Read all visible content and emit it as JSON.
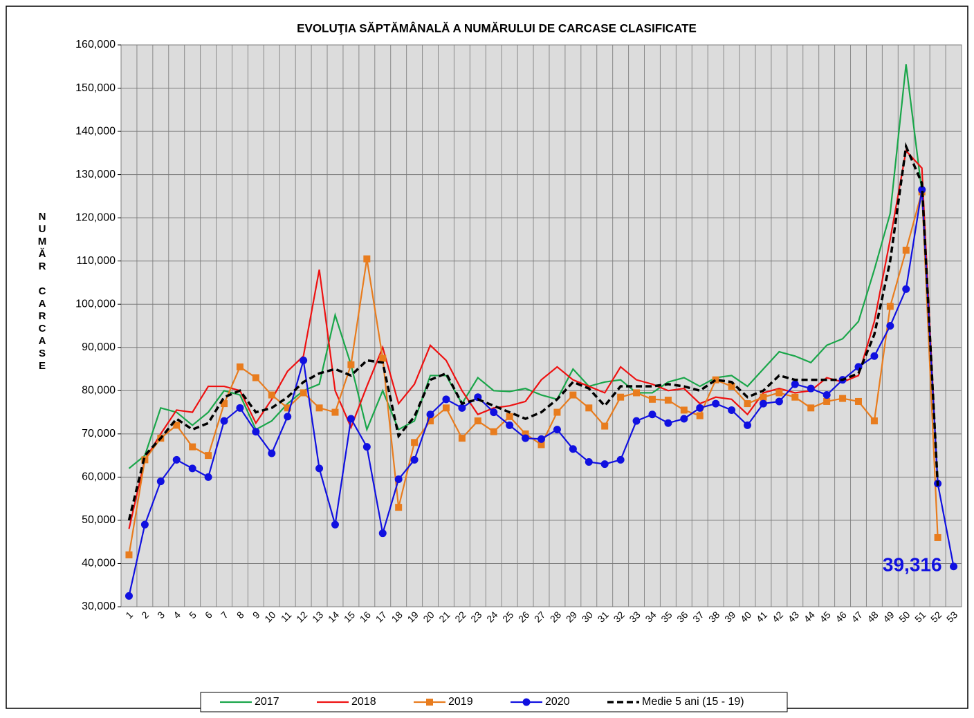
{
  "chart_data": {
    "type": "line",
    "title": "EVOLUŢIA SĂPTĂMÂNALĂ A NUMĂRULUI DE CARCASE  CLASIFICATE",
    "y_label": "NUMĂR  CARCASE",
    "categories": [
      "1",
      "2",
      "3",
      "4",
      "5",
      "6",
      "7",
      "8",
      "9",
      "10",
      "11",
      "12",
      "13",
      "14",
      "15",
      "16",
      "17",
      "18",
      "19",
      "20",
      "21",
      "22",
      "23",
      "24",
      "25",
      "26",
      "27",
      "28",
      "29",
      "30",
      "31",
      "32",
      "33",
      "34",
      "35",
      "36",
      "37",
      "38",
      "39",
      "40",
      "41",
      "42",
      "43",
      "44",
      "45",
      "46",
      "47",
      "48",
      "49",
      "50",
      "51",
      "52",
      "53"
    ],
    "ylim": [
      30000,
      160000
    ],
    "yticks": [
      {
        "value": 30000,
        "label": "30,000"
      },
      {
        "value": 40000,
        "label": "40,000"
      },
      {
        "value": 50000,
        "label": "50,000"
      },
      {
        "value": 60000,
        "label": "60,000"
      },
      {
        "value": 70000,
        "label": "70,000"
      },
      {
        "value": 80000,
        "label": "80,000"
      },
      {
        "value": 90000,
        "label": "90,000"
      },
      {
        "value": 100000,
        "label": "100,000"
      },
      {
        "value": 110000,
        "label": "110,000"
      },
      {
        "value": 120000,
        "label": "120,000"
      },
      {
        "value": 130000,
        "label": "130,000"
      },
      {
        "value": 140000,
        "label": "140,000"
      },
      {
        "value": 150000,
        "label": "150,000"
      },
      {
        "value": 160000,
        "label": "160,000"
      }
    ],
    "grid": true,
    "legend": "bottom",
    "series": [
      {
        "name": "2017",
        "color": "#1aa64a",
        "marker": "none",
        "dashed": false,
        "values": [
          62000,
          65000,
          76000,
          75000,
          72000,
          75000,
          80000,
          79000,
          71000,
          73000,
          77000,
          80000,
          81500,
          97500,
          86000,
          71000,
          80000,
          71000,
          73000,
          83500,
          83500,
          77000,
          83000,
          80000,
          79800,
          80500,
          79000,
          78000,
          85000,
          81000,
          82000,
          82500,
          79500,
          79500,
          82000,
          83000,
          81000,
          83000,
          83500,
          81000,
          85000,
          89000,
          88000,
          86500,
          90500,
          92000,
          96000,
          108000,
          121000,
          155500,
          126000,
          59000,
          null
        ]
      },
      {
        "name": "2018",
        "color": "#ee1111",
        "marker": "none",
        "dashed": false,
        "values": [
          48000,
          64000,
          70000,
          75500,
          75000,
          81000,
          81000,
          80000,
          72500,
          78000,
          84500,
          88000,
          108000,
          80000,
          71500,
          81000,
          90000,
          77000,
          81500,
          90500,
          87000,
          80000,
          74500,
          76000,
          76500,
          77500,
          82500,
          85500,
          82500,
          81000,
          79500,
          85500,
          82500,
          81500,
          80000,
          80500,
          77000,
          78500,
          78000,
          74500,
          79500,
          80500,
          79500,
          80000,
          83000,
          82000,
          83500,
          96000,
          115000,
          135500,
          131500,
          58000,
          null
        ]
      },
      {
        "name": "2019",
        "color": "#e87c1e",
        "marker": "square",
        "dashed": false,
        "values": [
          42000,
          64000,
          69000,
          72000,
          67000,
          65000,
          77000,
          85500,
          83000,
          79000,
          76000,
          79500,
          76000,
          75000,
          86000,
          110500,
          87500,
          53000,
          68000,
          73000,
          76000,
          69000,
          73000,
          70500,
          74000,
          70000,
          67500,
          75000,
          79000,
          76000,
          71800,
          78500,
          79500,
          78000,
          77800,
          75500,
          74200,
          82500,
          81000,
          77000,
          78500,
          79500,
          78500,
          76000,
          77500,
          78200,
          77500,
          73000,
          99500,
          112500,
          126000,
          46000,
          null
        ]
      },
      {
        "name": "2020",
        "color": "#1010e0",
        "marker": "circle",
        "dashed": false,
        "values": [
          32500,
          49000,
          59000,
          64000,
          62000,
          60000,
          73000,
          76000,
          70500,
          65500,
          74000,
          87000,
          62000,
          49000,
          73500,
          67000,
          47000,
          59500,
          64000,
          74500,
          78000,
          76000,
          78500,
          75000,
          72000,
          69000,
          68800,
          71000,
          66500,
          63500,
          63000,
          64000,
          73000,
          74500,
          72500,
          73500,
          76000,
          77000,
          75500,
          72000,
          77000,
          77500,
          81500,
          80500,
          79000,
          82500,
          85500,
          88000,
          95000,
          103500,
          126500,
          58500,
          39316
        ],
        "value_labels": [
          null,
          null,
          null,
          null,
          null,
          null,
          null,
          null,
          null,
          null,
          null,
          null,
          null,
          null,
          null,
          null,
          null,
          null,
          null,
          null,
          null,
          null,
          null,
          null,
          null,
          null,
          null,
          null,
          null,
          null,
          null,
          null,
          null,
          null,
          null,
          null,
          null,
          null,
          null,
          null,
          null,
          null,
          null,
          null,
          null,
          null,
          null,
          null,
          null,
          null,
          null,
          null,
          "39,316"
        ]
      },
      {
        "name": "Medie 5 ani (15 - 19)",
        "color": "#000000",
        "marker": "none",
        "dashed": true,
        "values": [
          50000,
          65000,
          69000,
          73500,
          71000,
          72500,
          78500,
          80000,
          75000,
          76000,
          78500,
          82000,
          84000,
          85000,
          83500,
          87000,
          86500,
          69500,
          74000,
          82500,
          84000,
          77000,
          78000,
          76500,
          75000,
          73500,
          75000,
          78000,
          82000,
          80500,
          76500,
          81000,
          81000,
          81000,
          81500,
          81000,
          80000,
          82500,
          82000,
          78500,
          80000,
          83500,
          82500,
          82500,
          82500,
          82500,
          84000,
          93000,
          110000,
          136500,
          128000,
          58000,
          null
        ]
      }
    ]
  }
}
